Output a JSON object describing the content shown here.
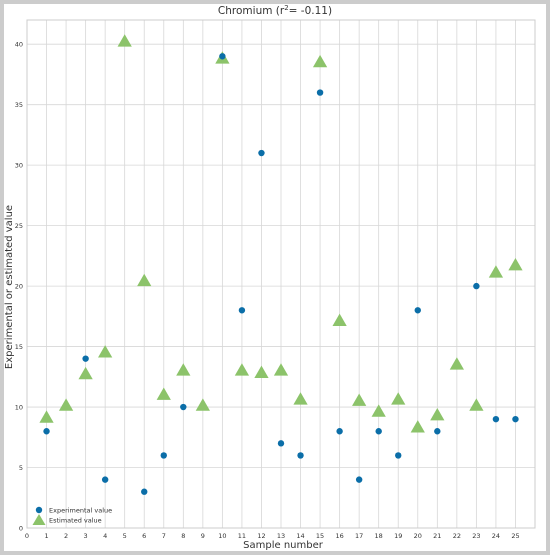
{
  "colors": {
    "frame": "#cccccc",
    "grid": "#d7d7d7",
    "experimental": "#0b6ea8",
    "estimated": "#8cc36a",
    "text": "#333333"
  },
  "chart_data": {
    "type": "scatter",
    "title_prefix": "Chromium (r",
    "title_sup": "2",
    "title_suffix": "= -0.11)",
    "xlabel": "Sample number",
    "ylabel": "Experimental or estimated value",
    "xlim": [
      0,
      26
    ],
    "ylim": [
      0,
      42
    ],
    "x_ticks": [
      0,
      1,
      2,
      3,
      4,
      5,
      6,
      7,
      8,
      9,
      10,
      11,
      12,
      13,
      14,
      15,
      16,
      17,
      18,
      19,
      20,
      21,
      22,
      23,
      24,
      25
    ],
    "y_ticks": [
      0,
      5,
      10,
      15,
      20,
      25,
      30,
      35,
      40
    ],
    "grid": true,
    "legend_position": "bottom-left",
    "series": [
      {
        "name": "Experimental value",
        "marker": "circle",
        "points": [
          [
            1,
            8
          ],
          [
            3,
            14
          ],
          [
            4,
            4
          ],
          [
            6,
            3
          ],
          [
            7,
            6
          ],
          [
            8,
            10
          ],
          [
            10,
            39
          ],
          [
            11,
            18
          ],
          [
            12,
            31
          ],
          [
            13,
            7
          ],
          [
            14,
            6
          ],
          [
            15,
            36
          ],
          [
            16,
            8
          ],
          [
            17,
            4
          ],
          [
            18,
            8
          ],
          [
            19,
            6
          ],
          [
            20,
            18
          ],
          [
            21,
            8
          ],
          [
            23,
            20
          ],
          [
            24,
            9
          ],
          [
            25,
            9
          ]
        ]
      },
      {
        "name": "Estimated value",
        "marker": "triangle",
        "points": [
          [
            1,
            9.1
          ],
          [
            2,
            10.1
          ],
          [
            3,
            12.7
          ],
          [
            4,
            14.5
          ],
          [
            5,
            40.2
          ],
          [
            6,
            20.4
          ],
          [
            7,
            11.0
          ],
          [
            8,
            13.0
          ],
          [
            9,
            10.1
          ],
          [
            10,
            38.8
          ],
          [
            11,
            13.0
          ],
          [
            12,
            12.8
          ],
          [
            13,
            13.0
          ],
          [
            14,
            10.6
          ],
          [
            15,
            38.5
          ],
          [
            16,
            17.1
          ],
          [
            17,
            10.5
          ],
          [
            18,
            9.6
          ],
          [
            19,
            10.6
          ],
          [
            20,
            8.3
          ],
          [
            21,
            9.3
          ],
          [
            22,
            13.5
          ],
          [
            23,
            10.1
          ],
          [
            24,
            21.1
          ],
          [
            25,
            21.7
          ]
        ]
      }
    ]
  }
}
